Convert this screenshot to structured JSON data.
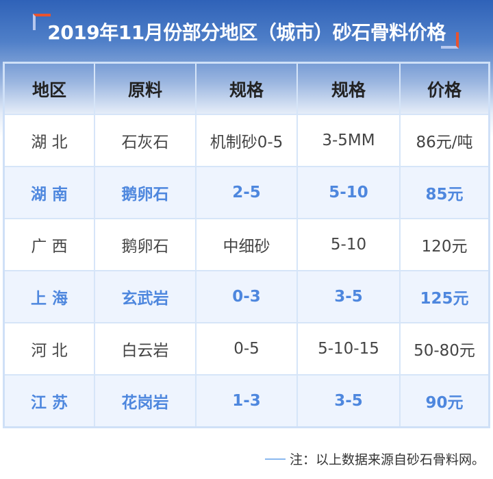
{
  "title": "2019年11月份部分地区（城市）砂石骨料价格",
  "table": {
    "headers": [
      "地区",
      "原料",
      "规格",
      "规格",
      "价格"
    ],
    "rows": [
      {
        "style": "plain",
        "cells": [
          "湖 北",
          "石灰石",
          "机制砂0-5",
          "3-5MM",
          "86元/吨"
        ]
      },
      {
        "style": "hl",
        "cells": [
          "湖 南",
          "鹅卵石",
          "2-5",
          "5-10",
          "85元"
        ]
      },
      {
        "style": "plain",
        "cells": [
          "广 西",
          "鹅卵石",
          "中细砂",
          "5-10",
          "120元"
        ]
      },
      {
        "style": "hl",
        "cells": [
          "上 海",
          "玄武岩",
          "0-3",
          "3-5",
          "125元"
        ]
      },
      {
        "style": "plain",
        "cells": [
          "河 北",
          "白云岩",
          "0-5",
          "5-10-15",
          "50-80元"
        ]
      },
      {
        "style": "hl",
        "cells": [
          "江 苏",
          "花岗岩",
          "1-3",
          "3-5",
          "90元"
        ]
      }
    ]
  },
  "footer": {
    "note": "注：以上数据来源自砂石骨料网。"
  },
  "colors": {
    "accent_blue": "#4e87de",
    "highlight_row": "#eef4fe",
    "corner_red": "#e8532e"
  }
}
